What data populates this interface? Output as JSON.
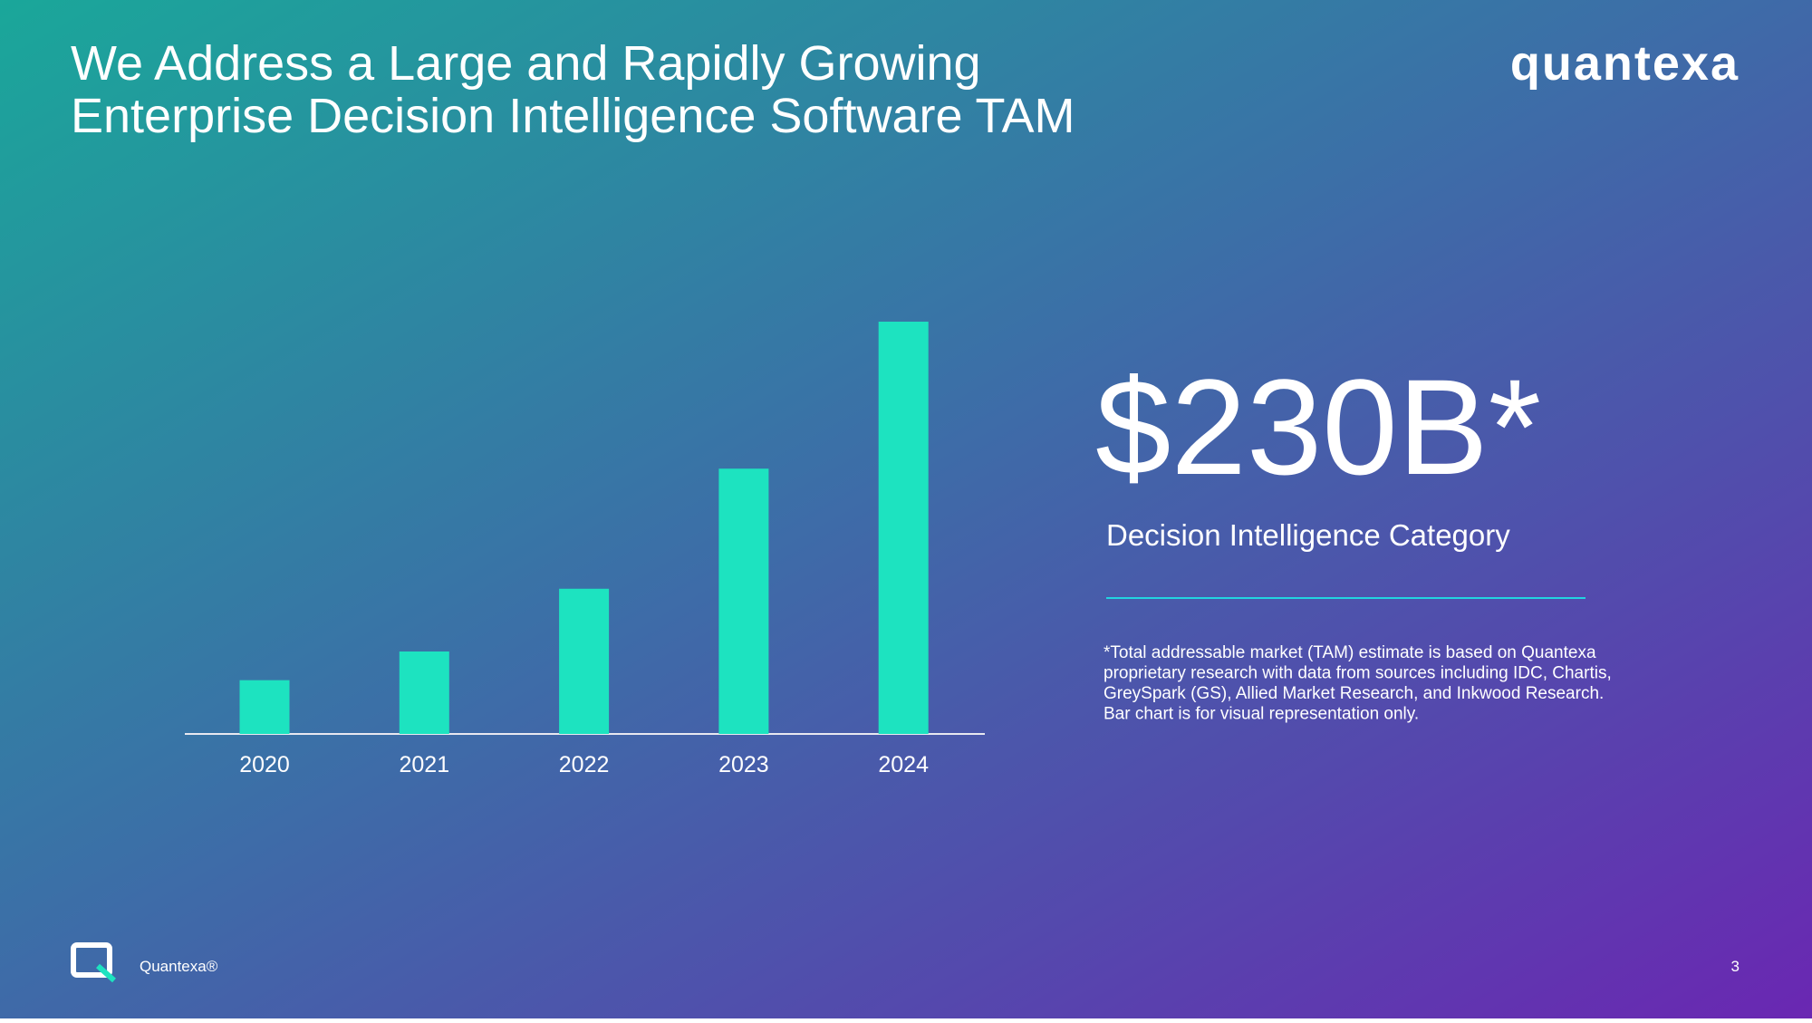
{
  "chart_data": {
    "type": "bar",
    "title": [
      "We Address a Large and Rapidly Growing",
      "Enterprise Decision Intelligence Software TAM"
    ],
    "categories": [
      "2020",
      "2021",
      "2022",
      "2023",
      "2024"
    ],
    "values": [
      30,
      46,
      81,
      148,
      230
    ],
    "color": "#1de3c0",
    "ylim": [
      0,
      230
    ]
  },
  "logo": "quantexa",
  "headline": "$230B*",
  "headline_caption": "Decision Intelligence Category",
  "footnote": [
    "*Total addressable market (TAM) estimate is based on Quantexa",
    "proprietary research with data from sources including IDC, Chartis,",
    "GreySpark (GS), Allied Market Research, and Inkwood Research.",
    "Bar chart is for visual representation only."
  ],
  "footer": {
    "brand": "Quantexa®",
    "page": "3"
  }
}
